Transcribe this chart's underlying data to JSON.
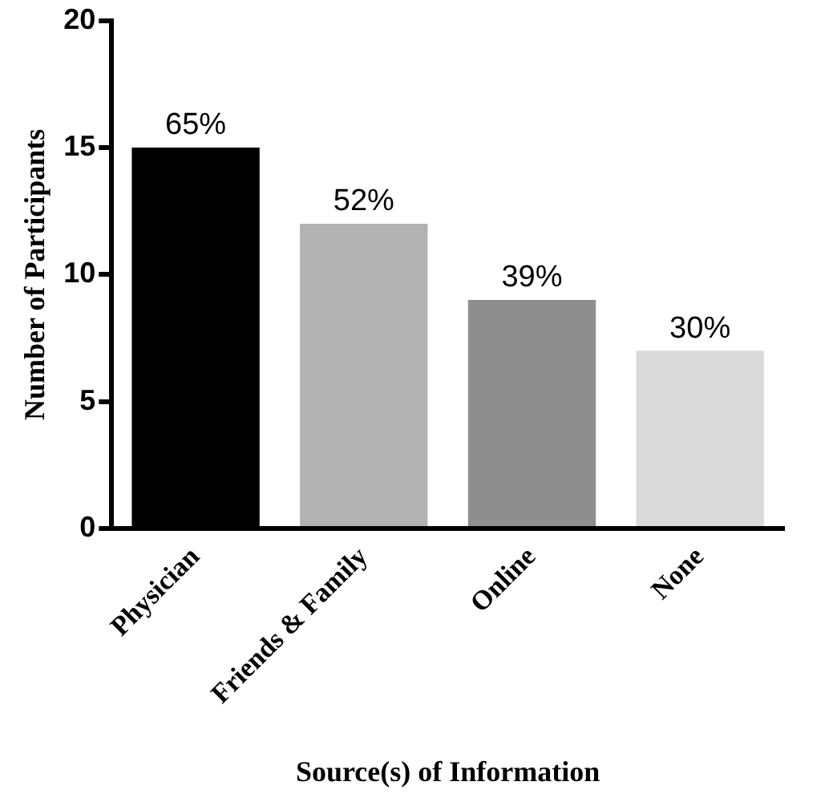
{
  "chart_data": {
    "type": "bar",
    "xlabel": "Source(s) of Information",
    "ylabel": "Number of Participants",
    "categories": [
      "Physician",
      "Friends & Family",
      "Online",
      "None"
    ],
    "values": [
      15,
      12,
      9,
      7
    ],
    "colors": [
      "#000000",
      "#b2b2b2",
      "#8e8e8e",
      "#dadada"
    ],
    "annotations": [
      {
        "text": "65%",
        "x": "Physician",
        "y": 15
      },
      {
        "text": "52%",
        "x": "Friends & Family",
        "y": 12
      },
      {
        "text": "39%",
        "x": "Online",
        "y": 9
      },
      {
        "text": "30%",
        "x": "None",
        "y": 7
      }
    ],
    "ylim": [
      0,
      20
    ],
    "yticks": [
      0,
      5,
      10,
      15,
      20
    ],
    "grid": false,
    "legend": false
  }
}
